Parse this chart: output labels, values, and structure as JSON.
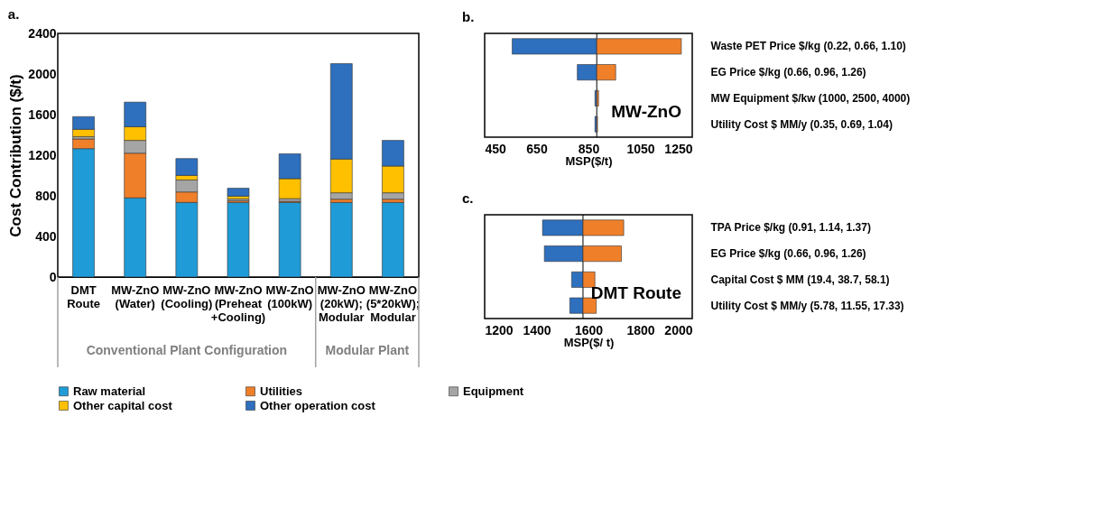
{
  "chart_data": [
    {
      "type": "bar",
      "title": "a.",
      "ylabel": "Cost Contribution ($/t)",
      "stacked": true,
      "legend": "bottom",
      "grid": false,
      "categories": [
        "DMT\nRoute",
        "MW-ZnO\n(Water)",
        "MW-ZnO\n(Cooling)",
        "MW-ZnO\n(Preheat\n+Cooling)",
        "MW-ZnO\n(100kW)",
        "MW-ZnO\n(20kW);\nModular",
        "MW-ZnO\n(5*20kW);\nModular"
      ],
      "ylim": [
        0,
        2400
      ],
      "yticks": [
        0,
        400,
        800,
        1200,
        1600,
        2000,
        2400
      ],
      "series": [
        {
          "name": "Raw material",
          "color": "#1f9bd7",
          "values": [
            1265,
            780,
            735,
            735,
            735,
            735,
            735
          ]
        },
        {
          "name": "Utilities",
          "color": "#f07f2a",
          "values": [
            95,
            440,
            103,
            16,
            11,
            32,
            32
          ]
        },
        {
          "name": "Equipment",
          "color": "#a5a5a5",
          "values": [
            23,
            126,
            118,
            18,
            26,
            63,
            63
          ]
        },
        {
          "name": "Other capital cost",
          "color": "#ffc000",
          "values": [
            72,
            134,
            45,
            27,
            197,
            332,
            263
          ]
        },
        {
          "name": "Other operation cost",
          "color": "#2e6fbe",
          "values": [
            125,
            243,
            166,
            79,
            245,
            940,
            253
          ]
        }
      ],
      "annotations": [
        "Conventional Plant Configuration",
        "Modular Plant"
      ]
    },
    {
      "type": "bar",
      "title": "b.",
      "xlabel": "MSP($/t)",
      "orientation": "horizontal",
      "grid": false,
      "categories": [
        "Waste PET Price $/kg (0.22, 0.66, 1.10)",
        "EG Price $/kg (0.66, 0.96, 1.26)",
        "MW Equipment $/kw (1000, 2500, 4000)",
        "Utility Cost $ MM/y (0.35, 0.69, 1.04)"
      ],
      "xlim": [
        450,
        1250
      ],
      "xticks": [
        450,
        650,
        850,
        1050,
        1250
      ],
      "series": [
        {
          "color": "#2e6fbe",
          "base": [
            556,
            807,
            875,
            875
          ],
          "values": [
            326,
            75,
            7,
            7
          ]
        },
        {
          "color": "#f07f2a",
          "base": [
            882,
            882,
            882,
            882
          ],
          "values": [
            326,
            73,
            7,
            3
          ]
        }
      ],
      "ref_lines": [
        {
          "axis": "x",
          "value": 882,
          "color": "#000000"
        }
      ],
      "annotations": [
        "MW-ZnO"
      ]
    },
    {
      "type": "bar",
      "title": "c.",
      "xlabel": "MSP($/ t)",
      "orientation": "horizontal",
      "grid": false,
      "categories": [
        "TPA Price $/kg (0.91, 1.14, 1.37)",
        "EG Price $/kg (0.66, 0.96, 1.26)",
        "Capital Cost $ MM (19.4, 38.7, 58.1)",
        "Utility Cost $ MM/y (5.78, 11.55, 17.33)"
      ],
      "xlim": [
        1200,
        2000
      ],
      "xticks": [
        1200,
        1400,
        1600,
        1800,
        2000
      ],
      "series": [
        {
          "color": "#2e6fbe",
          "base": [
            1423,
            1430,
            1535,
            1528
          ],
          "values": [
            156,
            149,
            44,
            51
          ]
        },
        {
          "color": "#f07f2a",
          "base": [
            1579,
            1579,
            1579,
            1579
          ],
          "values": [
            157,
            148,
            46,
            51
          ]
        }
      ],
      "ref_lines": [
        {
          "axis": "x",
          "value": 1579,
          "color": "#000000"
        }
      ],
      "annotations": [
        "DMT Route"
      ]
    }
  ]
}
